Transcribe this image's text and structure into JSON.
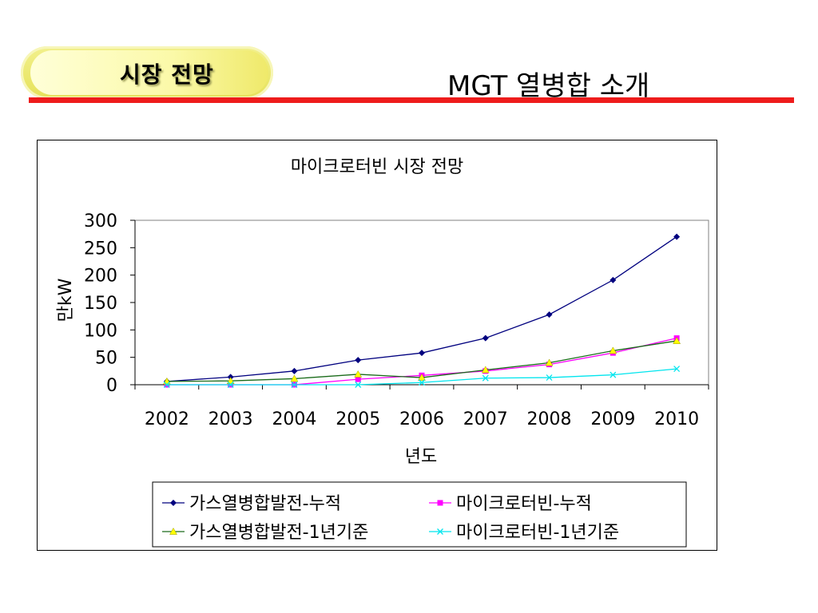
{
  "header": {
    "section_label": "시장 전망",
    "slide_title": "MGT 열병합 소개"
  },
  "colors": {
    "accent_rule": "#ee1c1c",
    "pill": "#e6e25a"
  },
  "chart_data": {
    "type": "line",
    "title": "마이크로터빈 시장 전망",
    "xlabel": "년도",
    "ylabel": "만kW",
    "ylim": [
      0,
      300
    ],
    "yticks": [
      0,
      50,
      100,
      150,
      200,
      250,
      300
    ],
    "categories": [
      "2002",
      "2003",
      "2004",
      "2005",
      "2006",
      "2007",
      "2008",
      "2009",
      "2010"
    ],
    "grid": false,
    "legend_position": "bottom",
    "series": [
      {
        "name": "가스열병합발전-누적",
        "color": "#00007f",
        "marker": "diamond",
        "values": [
          6,
          14,
          25,
          45,
          58,
          85,
          128,
          191,
          270
        ]
      },
      {
        "name": "마이크로터빈-누적",
        "color": "#ff00ff",
        "marker": "square",
        "values": [
          0,
          0,
          0,
          10,
          17,
          25,
          37,
          58,
          85
        ]
      },
      {
        "name": "가스열병합발전-1년기준",
        "color": "#1a6b1a",
        "marker": "triangle",
        "marker_color": "#ffff00",
        "values": [
          6,
          7,
          11,
          19,
          13,
          27,
          40,
          62,
          80
        ]
      },
      {
        "name": "마이크로터빈-1년기준",
        "color": "#00e5ee",
        "marker": "x",
        "values": [
          0,
          0,
          0,
          0,
          4,
          12,
          13,
          18,
          29
        ]
      }
    ]
  }
}
